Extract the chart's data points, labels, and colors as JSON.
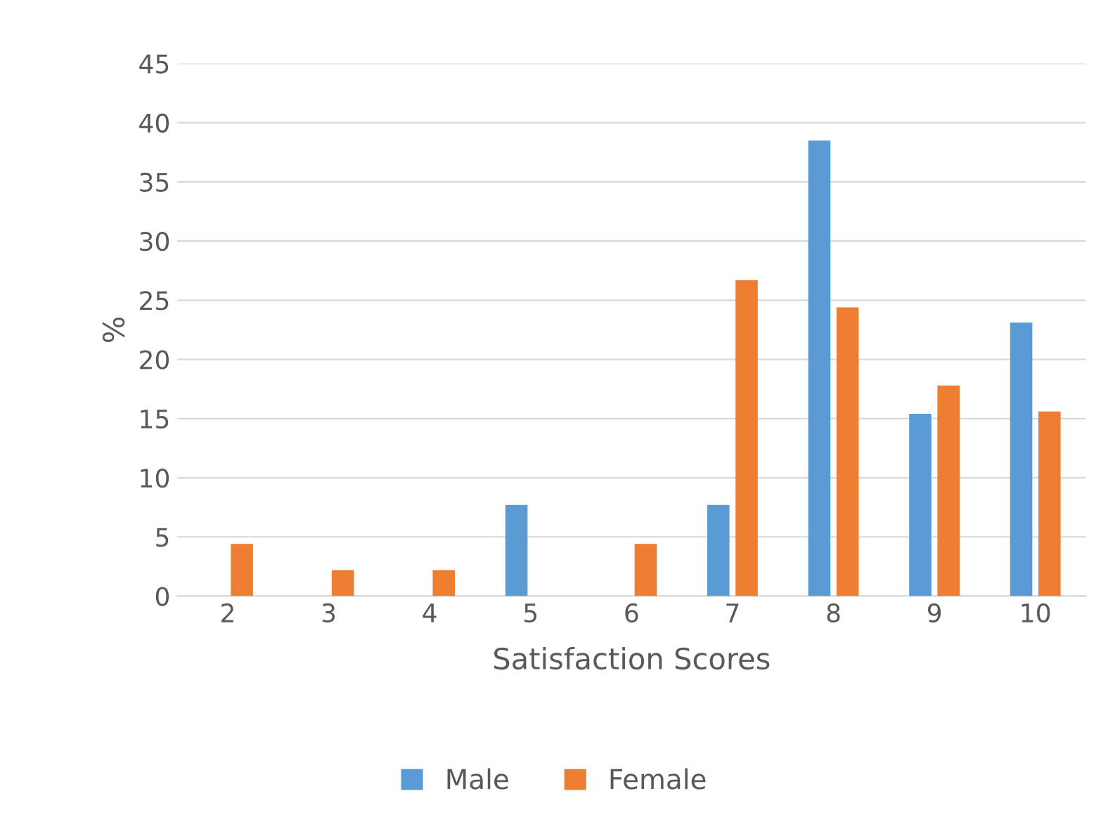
{
  "chart_data": {
    "type": "bar",
    "xlabel": "Satisfaction Scores",
    "ylabel": "%",
    "categories": [
      "2",
      "3",
      "4",
      "5",
      "6",
      "7",
      "8",
      "9",
      "10"
    ],
    "series": [
      {
        "name": "Male",
        "color": "#5b9bd5",
        "values": [
          0,
          0,
          0,
          7.7,
          0,
          7.7,
          38.5,
          15.4,
          23.1
        ]
      },
      {
        "name": "Female",
        "color": "#ed7d31",
        "values": [
          4.4,
          2.2,
          2.2,
          0,
          4.4,
          26.7,
          24.4,
          17.8,
          15.6
        ]
      }
    ],
    "ylim": [
      0,
      45
    ],
    "yticks": [
      0,
      5,
      10,
      15,
      20,
      25,
      30,
      35,
      40,
      45
    ],
    "grid": "y",
    "legend": "bottom"
  }
}
